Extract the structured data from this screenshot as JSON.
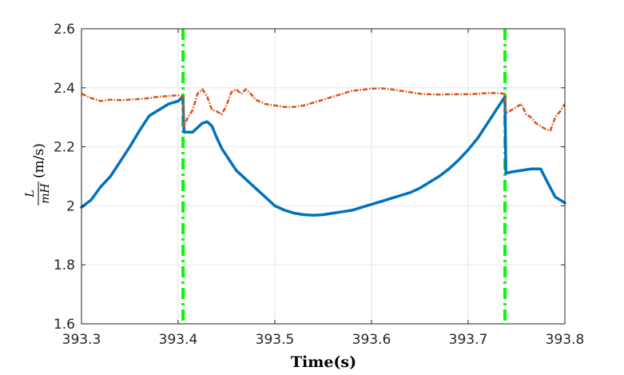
{
  "chart_data": {
    "type": "line",
    "xlabel": "Time(s)",
    "ylabel": {
      "numerator": "L",
      "denominator": "mH",
      "unit": "(m/s)"
    },
    "xlim": [
      393.3,
      393.8
    ],
    "ylim": [
      1.6,
      2.6
    ],
    "x_ticks": [
      393.3,
      393.4,
      393.5,
      393.6,
      393.7,
      393.8
    ],
    "x_tick_labels": [
      "393.3",
      "393.4",
      "393.5",
      "393.6",
      "393.7",
      "393.8"
    ],
    "y_ticks": [
      1.6,
      1.8,
      2.0,
      2.2,
      2.4,
      2.6
    ],
    "y_tick_labels": [
      "1.6",
      "1.8",
      "2",
      "2.2",
      "2.4",
      "2.6"
    ],
    "grid": true,
    "colors": {
      "blue_series": "#0072BD",
      "orange_series": "#D95319",
      "vertical_markers": "#00FF00",
      "grid": "#e6e6e6",
      "axes": "#262626"
    },
    "vertical_lines": [
      393.405,
      393.738
    ],
    "series": [
      {
        "style": "solid",
        "color": "#0072BD",
        "x": [
          393.3,
          393.31,
          393.32,
          393.33,
          393.34,
          393.35,
          393.36,
          393.37,
          393.38,
          393.39,
          393.4,
          393.405,
          393.406,
          393.41,
          393.415,
          393.42,
          393.425,
          393.43,
          393.435,
          393.44,
          393.445,
          393.45,
          393.46,
          393.47,
          393.48,
          393.49,
          393.5,
          393.51,
          393.52,
          393.53,
          393.54,
          393.55,
          393.56,
          393.57,
          393.58,
          393.59,
          393.6,
          393.61,
          393.62,
          393.63,
          393.64,
          393.65,
          393.66,
          393.67,
          393.68,
          393.69,
          393.7,
          393.71,
          393.72,
          393.73,
          393.738,
          393.739,
          393.745,
          393.755,
          393.765,
          393.775,
          393.782,
          393.79,
          393.8
        ],
        "y": [
          1.995,
          2.02,
          2.065,
          2.1,
          2.15,
          2.2,
          2.255,
          2.305,
          2.325,
          2.345,
          2.355,
          2.37,
          2.25,
          2.25,
          2.25,
          2.265,
          2.28,
          2.285,
          2.27,
          2.23,
          2.195,
          2.17,
          2.12,
          2.09,
          2.06,
          2.03,
          2.0,
          1.985,
          1.975,
          1.97,
          1.968,
          1.97,
          1.975,
          1.98,
          1.985,
          1.995,
          2.005,
          2.015,
          2.025,
          2.035,
          2.045,
          2.06,
          2.08,
          2.1,
          2.125,
          2.155,
          2.19,
          2.23,
          2.28,
          2.33,
          2.37,
          2.11,
          2.115,
          2.12,
          2.125,
          2.125,
          2.08,
          2.03,
          2.01
        ]
      },
      {
        "style": "dash-dot",
        "color": "#D95319",
        "x": [
          393.3,
          393.31,
          393.32,
          393.33,
          393.34,
          393.35,
          393.36,
          393.37,
          393.38,
          393.39,
          393.4,
          393.405,
          393.406,
          393.41,
          393.415,
          393.42,
          393.425,
          393.43,
          393.435,
          393.44,
          393.445,
          393.45,
          393.455,
          393.46,
          393.465,
          393.47,
          393.475,
          393.48,
          393.49,
          393.5,
          393.51,
          393.52,
          393.53,
          393.54,
          393.55,
          393.56,
          393.57,
          393.58,
          393.59,
          393.6,
          393.61,
          393.62,
          393.63,
          393.64,
          393.65,
          393.66,
          393.67,
          393.68,
          393.69,
          393.7,
          393.71,
          393.72,
          393.73,
          393.738,
          393.739,
          393.745,
          393.75,
          393.755,
          393.76,
          393.765,
          393.77,
          393.775,
          393.78,
          393.785,
          393.79,
          393.795,
          393.8
        ],
        "y": [
          2.38,
          2.365,
          2.355,
          2.36,
          2.358,
          2.36,
          2.362,
          2.365,
          2.37,
          2.372,
          2.375,
          2.37,
          2.27,
          2.3,
          2.325,
          2.38,
          2.395,
          2.37,
          2.325,
          2.32,
          2.31,
          2.34,
          2.385,
          2.395,
          2.38,
          2.395,
          2.38,
          2.36,
          2.345,
          2.34,
          2.335,
          2.335,
          2.34,
          2.35,
          2.36,
          2.37,
          2.38,
          2.39,
          2.393,
          2.397,
          2.398,
          2.395,
          2.39,
          2.385,
          2.38,
          2.378,
          2.377,
          2.378,
          2.378,
          2.378,
          2.38,
          2.382,
          2.382,
          2.38,
          2.315,
          2.325,
          2.335,
          2.345,
          2.31,
          2.3,
          2.28,
          2.27,
          2.26,
          2.255,
          2.3,
          2.32,
          2.345
        ]
      }
    ]
  }
}
